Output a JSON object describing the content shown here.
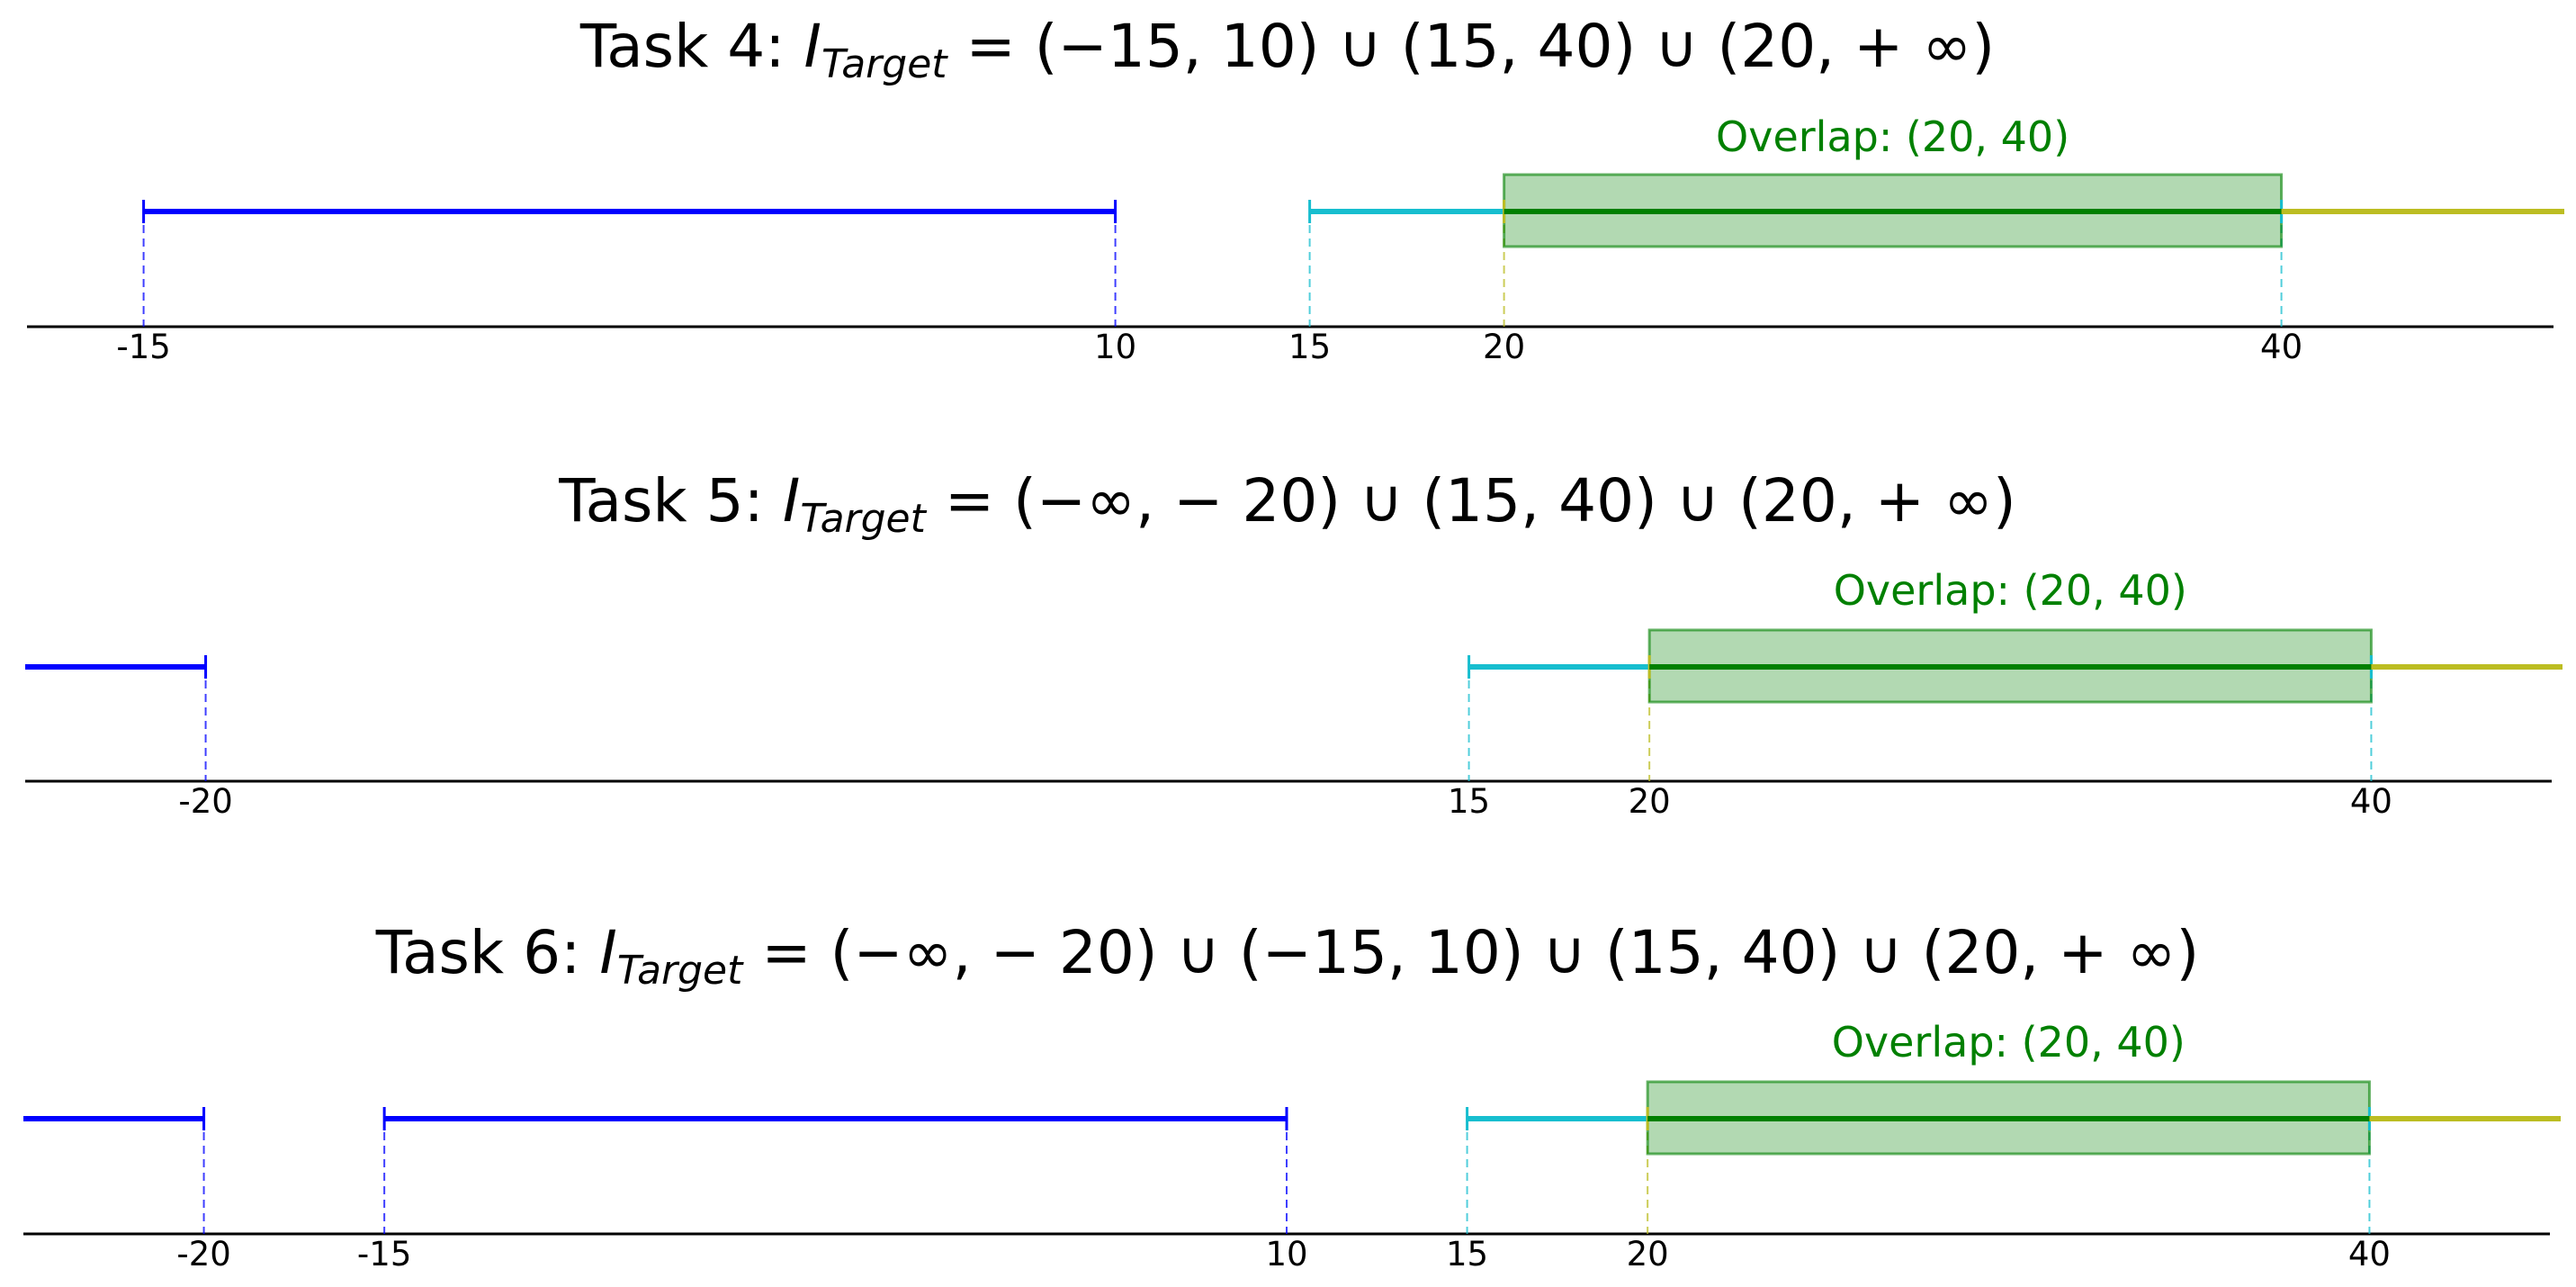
{
  "colors": {
    "interval_blue": "#0000ff",
    "interval_cyan": "#17becf",
    "interval_olive": "#bcbd22",
    "overlap_fill": "#008000",
    "overlap_line": "#008000",
    "overlap_label": "#008000",
    "axis": "#000000"
  },
  "chart_data": [
    {
      "type": "interval",
      "title": {
        "prefix": "Task 4: ",
        "symbol": "I",
        "subscript": "Target",
        "expression": " = (−15, 10) ∪ (15, 40) ∪ (20, + ∞)"
      },
      "xlim": [
        -18,
        47
      ],
      "intervals": [
        {
          "start": -15,
          "end": 10,
          "color": "blue",
          "open_left": false,
          "open_right": false
        },
        {
          "start": 15,
          "end": 40,
          "color": "cyan",
          "open_left": false,
          "open_right": false
        },
        {
          "start": 20,
          "end": null,
          "color": "olive",
          "open_left": false,
          "open_right": true
        }
      ],
      "overlap": {
        "start": 20,
        "end": 40,
        "label": "Overlap: (20, 40)"
      },
      "ticks": [
        {
          "value": -15,
          "label": "-15"
        },
        {
          "value": 10,
          "label": "10"
        },
        {
          "value": 15,
          "label": "15"
        },
        {
          "value": 20,
          "label": "20"
        },
        {
          "value": 40,
          "label": "40"
        }
      ]
    },
    {
      "type": "interval",
      "title": {
        "prefix": "Task 5: ",
        "symbol": "I",
        "subscript": "Target",
        "expression": " = (−∞, − 20) ∪ (15, 40) ∪ (20, + ∞)"
      },
      "xlim": [
        -25,
        45
      ],
      "intervals": [
        {
          "start": null,
          "end": -20,
          "color": "blue",
          "open_left": true,
          "open_right": false
        },
        {
          "start": 15,
          "end": 40,
          "color": "cyan",
          "open_left": false,
          "open_right": false
        },
        {
          "start": 20,
          "end": null,
          "color": "olive",
          "open_left": false,
          "open_right": true
        }
      ],
      "overlap": {
        "start": 20,
        "end": 40,
        "label": "Overlap: (20, 40)"
      },
      "ticks": [
        {
          "value": -20,
          "label": "-20"
        },
        {
          "value": 15,
          "label": "15"
        },
        {
          "value": 20,
          "label": "20"
        },
        {
          "value": 40,
          "label": "40"
        }
      ]
    },
    {
      "type": "interval",
      "title": {
        "prefix": "Task 6: ",
        "symbol": "I",
        "subscript": "Target",
        "expression": " = (−∞, − 20) ∪ (−15, 10) ∪ (15, 40) ∪ (20, + ∞)"
      },
      "xlim": [
        -25,
        45
      ],
      "intervals": [
        {
          "start": null,
          "end": -20,
          "color": "blue",
          "open_left": true,
          "open_right": false
        },
        {
          "start": -15,
          "end": 10,
          "color": "blue",
          "open_left": false,
          "open_right": false
        },
        {
          "start": 15,
          "end": 40,
          "color": "cyan",
          "open_left": false,
          "open_right": false
        },
        {
          "start": 20,
          "end": null,
          "color": "olive",
          "open_left": false,
          "open_right": true
        }
      ],
      "overlap": {
        "start": 20,
        "end": 40,
        "label": "Overlap: (20, 40)"
      },
      "ticks": [
        {
          "value": -20,
          "label": "-20"
        },
        {
          "value": -15,
          "label": "-15"
        },
        {
          "value": 10,
          "label": "10"
        },
        {
          "value": 15,
          "label": "15"
        },
        {
          "value": 20,
          "label": "20"
        },
        {
          "value": 40,
          "label": "40"
        }
      ]
    }
  ]
}
